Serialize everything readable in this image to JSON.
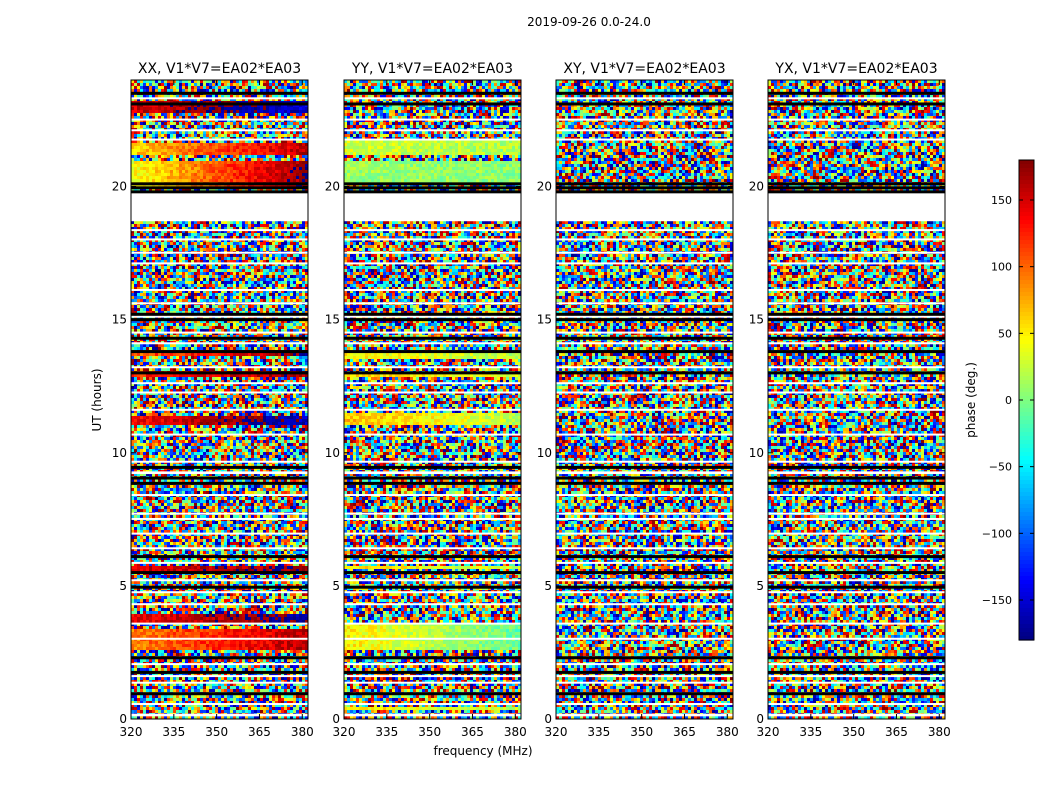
{
  "chart_data": {
    "type": "heatmap",
    "suptitle": "2019-09-26 0.0-24.0",
    "xlabel": "frequency (MHz)",
    "ylabel": "UT (hours)",
    "xlim": [
      320,
      382
    ],
    "ylim": [
      0,
      24
    ],
    "x_ticks": [
      320,
      335,
      350,
      365,
      380
    ],
    "y_ticks": [
      0,
      5,
      10,
      15,
      20
    ],
    "colorbar": {
      "label": "phase (deg.)",
      "range": [
        -180,
        180
      ],
      "ticks": [
        150,
        100,
        50,
        0,
        -50,
        -100,
        -150
      ],
      "tick_labels": [
        "150",
        "100",
        "50",
        "0",
        "−50",
        "−100",
        "−150"
      ],
      "colormap": "jet"
    },
    "panels": [
      {
        "title": "XX, V1*V7=EA02*EA03",
        "coherent_bands": [
          {
            "ut": [
              20.0,
              21.0
            ],
            "phase_start": 40,
            "phase_end": 175
          },
          {
            "ut": [
              21.2,
              21.6
            ],
            "phase_start": 60,
            "phase_end": 160
          },
          {
            "ut": [
              22.8,
              23.2
            ],
            "phase_start": 150,
            "phase_end": -150
          },
          {
            "ut": [
              13.6,
              13.9
            ],
            "phase_start": 100,
            "phase_end": 175
          },
          {
            "ut": [
              12.8,
              13.1
            ],
            "phase_start": 120,
            "phase_end": 170
          },
          {
            "ut": [
              11.0,
              11.4
            ],
            "phase_start": 135,
            "phase_end": -160
          },
          {
            "ut": [
              5.5,
              5.7
            ],
            "phase_start": 150,
            "phase_end": 175
          },
          {
            "ut": [
              3.6,
              3.9
            ],
            "phase_start": 140,
            "phase_end": -170
          },
          {
            "ut": [
              2.6,
              3.4
            ],
            "phase_start": 90,
            "phase_end": 160
          }
        ]
      },
      {
        "title": "YY, V1*V7=EA02*EA03",
        "coherent_bands": [
          {
            "ut": [
              20.1,
              21.0
            ],
            "phase_start": 10,
            "phase_end": 5
          },
          {
            "ut": [
              21.2,
              21.7
            ],
            "phase_start": 30,
            "phase_end": 15
          },
          {
            "ut": [
              13.5,
              13.8
            ],
            "phase_start": 50,
            "phase_end": 20
          },
          {
            "ut": [
              12.8,
              13.0
            ],
            "phase_start": 60,
            "phase_end": 30
          },
          {
            "ut": [
              11.0,
              11.5
            ],
            "phase_start": 70,
            "phase_end": 20
          },
          {
            "ut": [
              5.6,
              5.8
            ],
            "phase_start": 60,
            "phase_end": 20
          },
          {
            "ut": [
              2.6,
              3.6
            ],
            "phase_start": 50,
            "phase_end": -10
          },
          {
            "ut": [
              0.3,
              0.5
            ],
            "phase_start": 60,
            "phase_end": 20
          }
        ]
      },
      {
        "title": "XY, V1*V7=EA02*EA03",
        "coherent_bands": []
      },
      {
        "title": "YX, V1*V7=EA02*EA03",
        "coherent_bands": []
      }
    ],
    "flagged_rows_ut": [
      [
        0.1,
        0.2
      ],
      [
        0.55,
        0.6
      ],
      [
        0.9,
        1.0
      ],
      [
        1.35,
        1.4
      ],
      [
        1.6,
        1.65
      ],
      [
        2.05,
        2.1
      ],
      [
        2.3,
        2.35
      ],
      [
        3.0,
        3.05
      ],
      [
        3.55,
        3.62
      ],
      [
        4.3,
        4.35
      ],
      [
        4.75,
        4.8
      ],
      [
        5.2,
        5.25
      ],
      [
        5.85,
        5.9
      ],
      [
        6.4,
        6.45
      ],
      [
        6.95,
        7.0
      ],
      [
        7.5,
        7.55
      ],
      [
        7.7,
        7.75
      ],
      [
        8.4,
        8.45
      ],
      [
        9.2,
        9.3
      ],
      [
        9.65,
        9.7
      ],
      [
        10.65,
        10.72
      ],
      [
        11.6,
        11.65
      ],
      [
        12.25,
        12.3
      ],
      [
        12.6,
        12.65
      ],
      [
        13.2,
        13.25
      ],
      [
        14.1,
        14.15
      ],
      [
        14.5,
        14.55
      ],
      [
        15.1,
        15.15
      ],
      [
        15.6,
        15.65
      ],
      [
        16.1,
        16.15
      ],
      [
        17.1,
        17.15
      ],
      [
        17.5,
        17.55
      ],
      [
        18.0,
        18.05
      ],
      [
        18.35,
        18.4
      ],
      [
        19.0,
        19.05
      ],
      [
        19.75,
        18.7
      ],
      [
        21.75,
        21.8
      ],
      [
        22.1,
        22.15
      ],
      [
        22.5,
        22.55
      ],
      [
        23.3,
        23.35
      ]
    ],
    "gap_ut": [
      18.7,
      19.75
    ],
    "dark_rows_ut": [
      0.95,
      1.75,
      2.3,
      4.95,
      5.5,
      6.1,
      8.85,
      9.05,
      9.45,
      13.0,
      13.8,
      14.3,
      15.0,
      15.2,
      19.8,
      19.95,
      20.1,
      23.1,
      23.5
    ]
  }
}
